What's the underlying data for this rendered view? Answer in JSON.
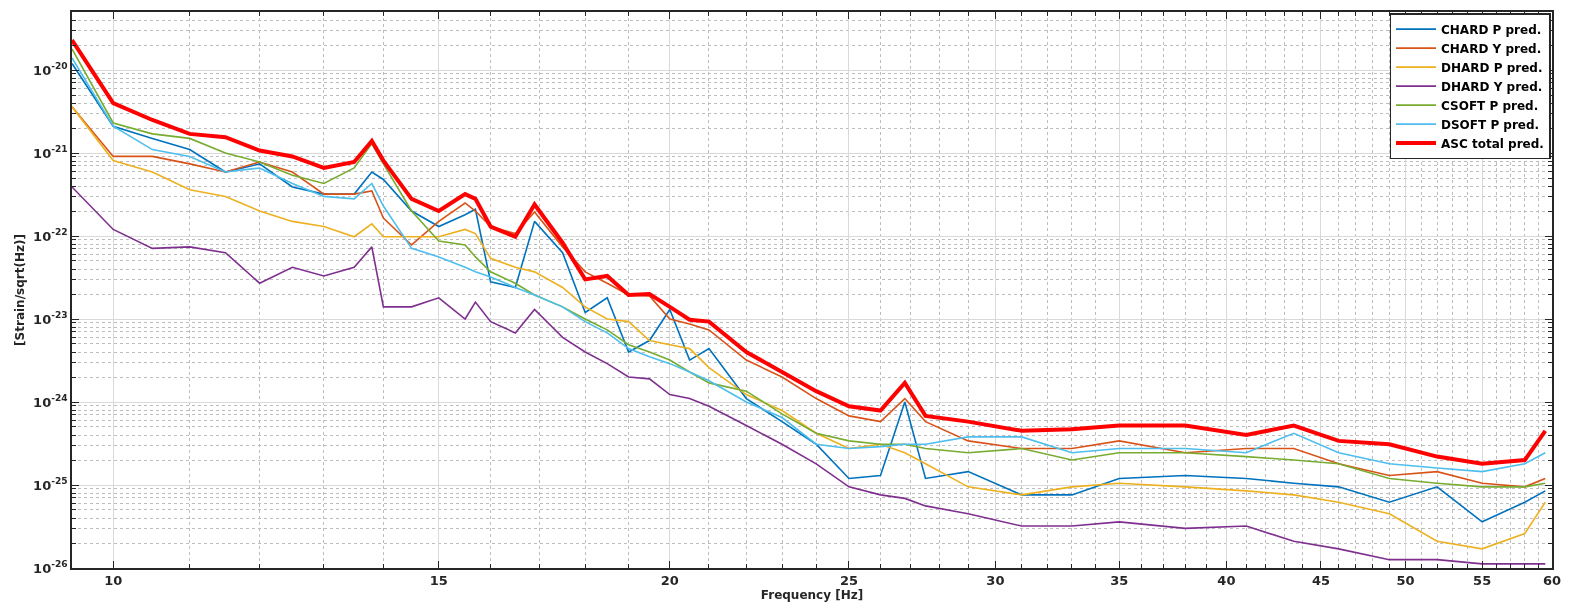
{
  "chart_data": {
    "type": "line",
    "xlabel": "Frequency [Hz]",
    "ylabel": "[Strain/sqrt(Hz)]",
    "log": "xy",
    "grid": true,
    "legend": "top right",
    "line_style": "solid",
    "xlim": [
      9.5,
      60
    ],
    "xticks": [
      10,
      15,
      20,
      25,
      30,
      35,
      40,
      45,
      50,
      55,
      60
    ],
    "ylim": [
      1e-26,
      5e-20
    ],
    "yticks": [
      {
        "value": 1e-26,
        "label": "10$^{-26}$"
      },
      {
        "value": 1e-25,
        "label": "10$^{-25}$"
      },
      {
        "value": 1e-24,
        "label": "10$^{-24}$"
      },
      {
        "value": 1e-23,
        "label": "10$^{-23}$"
      },
      {
        "value": 1e-22,
        "label": "10$^{-22}$"
      },
      {
        "value": 1e-21,
        "label": "10$^{-21}$"
      },
      {
        "value": 1e-20,
        "label": "10$^{-20}$"
      }
    ],
    "x": [
      9.5,
      10,
      10.5,
      11,
      11.5,
      12,
      12.5,
      13,
      13.5,
      13.8,
      14,
      14.5,
      15,
      15.5,
      15.7,
      16,
      16.5,
      16.9,
      17.5,
      18,
      18.5,
      19,
      19.5,
      20,
      20.5,
      21,
      22,
      23,
      24,
      25,
      26,
      26.8,
      27.5,
      29,
      31,
      33,
      35,
      38,
      41,
      43.5,
      46,
      49,
      52,
      55,
      58,
      59.5
    ],
    "series": [
      {
        "name": "CHARD P pred.",
        "color": "#0072bd",
        "values": [
          1.2e-20,
          2.1e-21,
          1.5e-21,
          1.1e-21,
          5.9e-22,
          7.4e-22,
          3.9e-22,
          3.2e-22,
          3.2e-22,
          5.9e-22,
          4.8e-22,
          2e-22,
          1.3e-22,
          1.8e-22,
          2.1e-22,
          2.8e-23,
          2.4e-23,
          1.5e-22,
          6.3e-23,
          1.2e-23,
          1.8e-23,
          4e-24,
          5.5e-24,
          1.3e-23,
          3.2e-24,
          4.4e-24,
          1.1e-24,
          5.8e-25,
          3.1e-25,
          1.2e-25,
          1.3e-25,
          1e-24,
          1.2e-25,
          1.45e-25,
          7.6e-26,
          7.6e-26,
          1.2e-25,
          1.3e-25,
          1.2e-25,
          1.05e-25,
          9.5e-26,
          6.2e-26,
          9.5e-26,
          3.6e-26,
          6.2e-26,
          8.5e-26
        ]
      },
      {
        "name": "CHARD Y pred.",
        "color": "#d95319",
        "values": [
          3.6e-21,
          9.1e-22,
          9.1e-22,
          7.4e-22,
          5.9e-22,
          7.8e-22,
          5.9e-22,
          3.2e-22,
          3.2e-22,
          3.5e-22,
          1.65e-22,
          7.8e-23,
          1.5e-22,
          2.5e-22,
          2e-22,
          1.3e-22,
          1.07e-22,
          1.95e-22,
          7.4e-23,
          3.7e-23,
          2.7e-23,
          1.95e-23,
          1.9e-23,
          1e-23,
          8.7e-24,
          7.4e-24,
          3.2e-24,
          2e-24,
          1.1e-24,
          6.8e-25,
          5.8e-25,
          1.1e-24,
          5.8e-25,
          3.4e-25,
          2.75e-25,
          2.75e-25,
          3.4e-25,
          2.45e-25,
          2.75e-25,
          2.75e-25,
          1.8e-25,
          1.3e-25,
          1.45e-25,
          1.05e-25,
          9.5e-26,
          1.2e-25
        ]
      },
      {
        "name": "DHARD P pred.",
        "color": "#edb120",
        "values": [
          3.6e-21,
          8.1e-22,
          5.9e-22,
          3.6e-22,
          3e-22,
          2e-22,
          1.5e-22,
          1.3e-22,
          9.8e-23,
          1.4e-22,
          9.8e-23,
          9.8e-23,
          9.8e-23,
          1.2e-22,
          1.07e-22,
          5.4e-23,
          4.2e-23,
          3.7e-23,
          2.4e-23,
          1.4e-23,
          1e-23,
          9.3e-24,
          5.5e-24,
          4.9e-24,
          4.4e-24,
          2.6e-24,
          1.23e-24,
          7.9e-25,
          4.2e-25,
          2.75e-25,
          3.1e-25,
          2.45e-25,
          1.8e-25,
          9.5e-26,
          7.6e-26,
          9.5e-26,
          1.05e-25,
          9.5e-26,
          8.5e-26,
          7.6e-26,
          6.2e-26,
          4.5e-26,
          2.1e-26,
          1.7e-26,
          2.6e-26,
          6.2e-26
        ]
      },
      {
        "name": "DHARD Y pred.",
        "color": "#7e2f8e",
        "values": [
          3.9e-22,
          1.2e-22,
          7.1e-23,
          7.4e-23,
          6.3e-23,
          2.7e-23,
          4.2e-23,
          3.3e-23,
          4.2e-23,
          7.4e-23,
          1.4e-23,
          1.4e-23,
          1.8e-23,
          1e-23,
          1.6e-23,
          9.3e-24,
          6.8e-24,
          1.3e-23,
          6e-24,
          4e-24,
          2.9e-24,
          2e-24,
          1.9e-24,
          1.23e-24,
          1.1e-24,
          8.9e-25,
          5.2e-25,
          3.1e-25,
          1.8e-25,
          9.5e-26,
          7.6e-26,
          6.9e-26,
          5.6e-26,
          4.5e-26,
          3.2e-26,
          3.2e-26,
          3.6e-26,
          3e-26,
          3.2e-26,
          2.1e-26,
          1.7e-26,
          1.26e-26,
          1.26e-26,
          1.12e-26,
          1.12e-26,
          1.12e-26
        ]
      },
      {
        "name": "CSOFT P pred.",
        "color": "#77ac30",
        "values": [
          1.8e-20,
          2.3e-21,
          1.7e-21,
          1.5e-21,
          1e-21,
          7.8e-22,
          5.4e-22,
          4.3e-22,
          6.6e-22,
          1.3e-21,
          7.4e-22,
          2e-22,
          8.7e-23,
          7.8e-23,
          5.6e-23,
          3.7e-23,
          2.7e-23,
          1.95e-23,
          1.4e-23,
          1e-23,
          7.4e-24,
          4.9e-24,
          4e-24,
          3.2e-24,
          2.3e-24,
          1.7e-24,
          1.35e-24,
          7.2e-25,
          4.2e-25,
          3.4e-25,
          3.1e-25,
          3.1e-25,
          2.75e-25,
          2.45e-25,
          2.75e-25,
          2e-25,
          2.45e-25,
          2.45e-25,
          2.2e-25,
          2e-25,
          1.8e-25,
          1.2e-25,
          1.05e-25,
          9.5e-26,
          9.5e-26,
          1.05e-25
        ]
      },
      {
        "name": "DSOFT P pred.",
        "color": "#4dbeee",
        "values": [
          1.4e-20,
          2.1e-21,
          1.1e-21,
          9.1e-22,
          5.9e-22,
          6.6e-22,
          4.3e-22,
          3e-22,
          2.8e-22,
          4.3e-22,
          2.3e-22,
          7.1e-23,
          5.6e-23,
          4.2e-23,
          3.7e-23,
          3.2e-23,
          2.4e-23,
          1.95e-23,
          1.4e-23,
          9.3e-24,
          6.8e-24,
          4.4e-24,
          3.5e-24,
          2.9e-24,
          2.3e-24,
          1.8e-24,
          1e-24,
          6.5e-25,
          3.1e-25,
          2.75e-25,
          2.9e-25,
          3.1e-25,
          3.1e-25,
          3.8e-25,
          3.8e-25,
          2.45e-25,
          2.75e-25,
          2.75e-25,
          2.45e-25,
          4.2e-25,
          2.45e-25,
          1.8e-25,
          1.6e-25,
          1.45e-25,
          1.8e-25,
          2.45e-25
        ]
      },
      {
        "name": "ASC total pred.",
        "color": "#ff0000",
        "values": [
          2.3e-20,
          4e-21,
          2.5e-21,
          1.7e-21,
          1.55e-21,
          1.07e-21,
          9.1e-22,
          6.6e-22,
          7.8e-22,
          1.4e-21,
          8.1e-22,
          2.8e-22,
          2e-22,
          3.2e-22,
          2.8e-22,
          1.3e-22,
          9.8e-23,
          2.4e-22,
          8.3e-23,
          3e-23,
          3.3e-23,
          1.95e-23,
          2e-23,
          1.4e-23,
          9.8e-24,
          9.3e-24,
          4e-24,
          2.3e-24,
          1.35e-24,
          8.9e-25,
          7.9e-25,
          1.7e-24,
          6.8e-25,
          5.8e-25,
          4.5e-25,
          4.7e-25,
          5.2e-25,
          5.2e-25,
          4e-25,
          5.2e-25,
          3.4e-25,
          3.1e-25,
          2.2e-25,
          1.8e-25,
          2e-25,
          4.5e-25
        ]
      }
    ]
  }
}
